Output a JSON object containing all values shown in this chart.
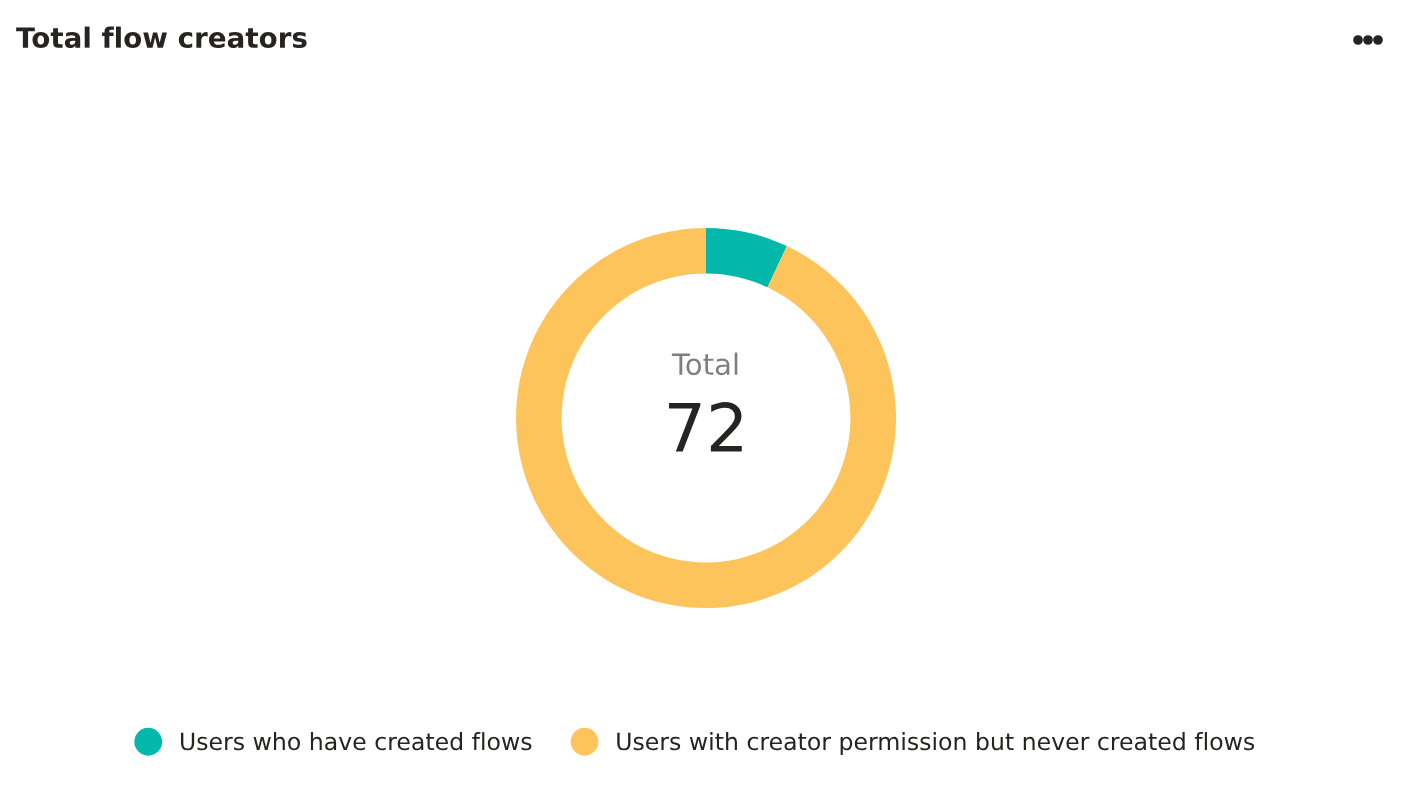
{
  "chart_data": {
    "type": "donut",
    "title": "Total flow creators",
    "categories": [
      "Users who have created flows",
      "Users with creator permission but never created flows"
    ],
    "values": [
      7,
      93
    ],
    "colors": [
      "#01b8aa",
      "#fec45c"
    ],
    "annotations": [
      "Total",
      "72"
    ],
    "legend": "bottom"
  }
}
